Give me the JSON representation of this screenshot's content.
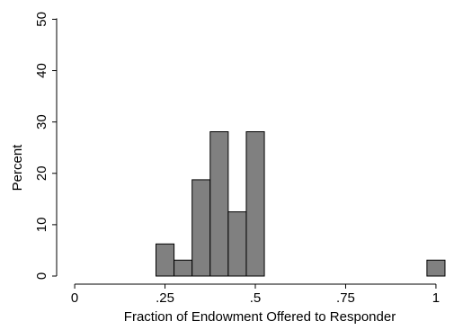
{
  "chart_data": {
    "type": "bar",
    "subtype": "histogram",
    "xlabel": "Fraction of Endowment Offered to Responder",
    "ylabel": "Percent",
    "xlim": [
      -0.05,
      1.04
    ],
    "ylim": [
      0,
      52
    ],
    "xticks": [
      {
        "value": 0,
        "label": "0"
      },
      {
        "value": 0.25,
        "label": ".25"
      },
      {
        "value": 0.5,
        "label": ".5"
      },
      {
        "value": 0.75,
        "label": ".75"
      },
      {
        "value": 1,
        "label": "1"
      }
    ],
    "yticks": [
      {
        "value": 0,
        "label": "0"
      },
      {
        "value": 10,
        "label": "10"
      },
      {
        "value": 20,
        "label": "20"
      },
      {
        "value": 30,
        "label": "30"
      },
      {
        "value": 40,
        "label": "40"
      },
      {
        "value": 50,
        "label": "50"
      }
    ],
    "bin_width": 0.05,
    "bins": [
      {
        "x0": 0.225,
        "x1": 0.275,
        "value": 6.25
      },
      {
        "x0": 0.275,
        "x1": 0.325,
        "value": 3.1
      },
      {
        "x0": 0.325,
        "x1": 0.375,
        "value": 18.75
      },
      {
        "x0": 0.375,
        "x1": 0.425,
        "value": 28.1
      },
      {
        "x0": 0.425,
        "x1": 0.475,
        "value": 12.5
      },
      {
        "x0": 0.475,
        "x1": 0.525,
        "value": 28.1
      },
      {
        "x0": 0.975,
        "x1": 1.025,
        "value": 3.1
      }
    ],
    "bar_fill": "#808080",
    "bar_stroke": "#000000",
    "grid": false,
    "legend": "none"
  }
}
